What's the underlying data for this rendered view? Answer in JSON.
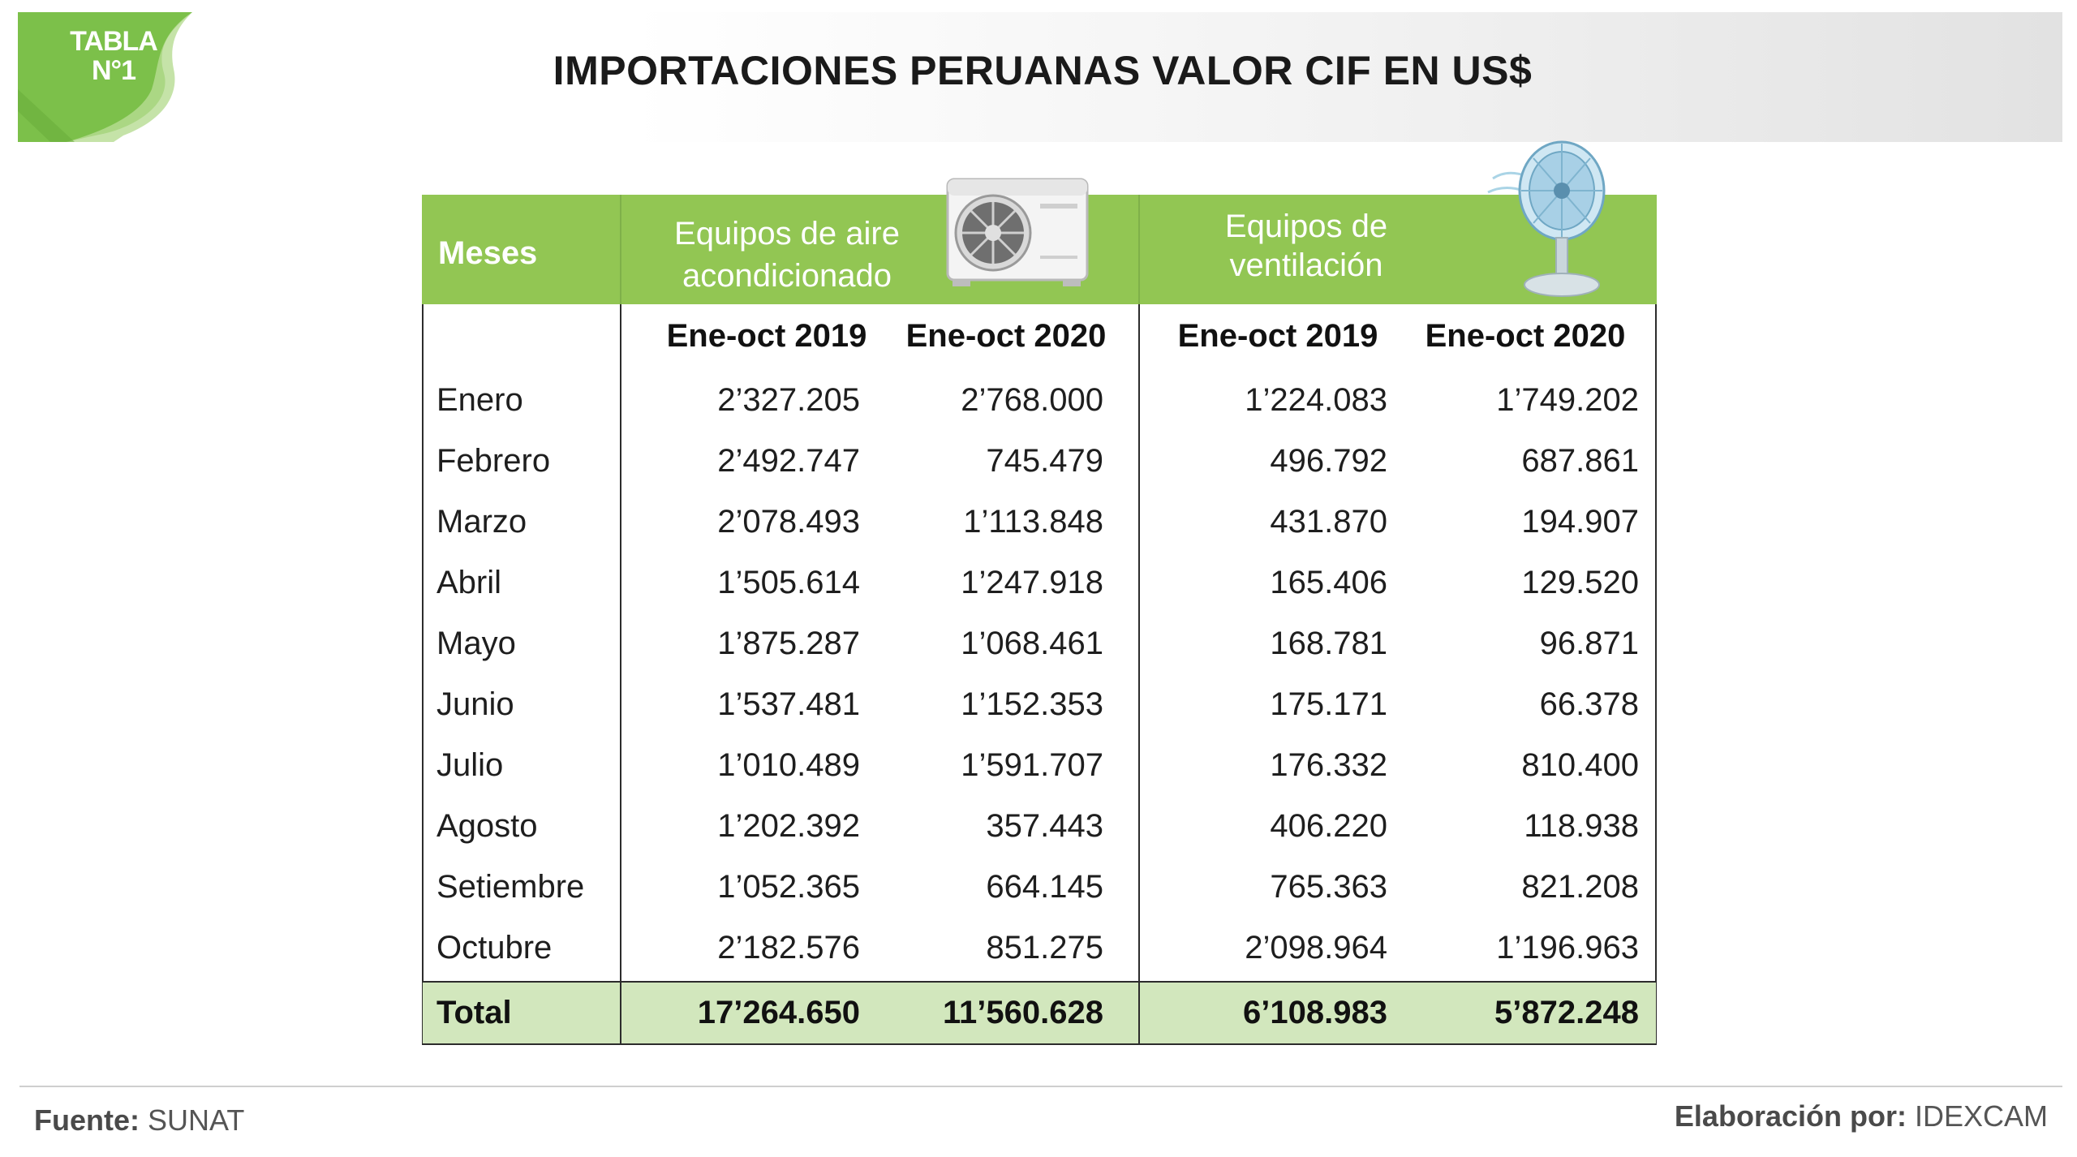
{
  "badge": {
    "line1": "TABLA",
    "line2": "N°1"
  },
  "title": "IMPORTACIONES PERUANAS VALOR CIF EN US$",
  "colors": {
    "header_green": "#92c653",
    "badge_green": "#7cc04a",
    "total_band": "#d2e7bd",
    "text_dark": "#1e1e1e"
  },
  "table": {
    "month_header": "Meses",
    "groups": [
      {
        "label_line1": "Equipos de aire",
        "label_line2": "acondicionado",
        "icon": "air-conditioner-icon"
      },
      {
        "label_line1": "Equipos de",
        "label_line2": "ventilación",
        "icon": "desk-fan-icon"
      }
    ],
    "sub_headers": [
      "Ene-oct 2019",
      "Ene-oct 2020",
      "Ene-oct 2019",
      "Ene-oct 2020"
    ],
    "rows": [
      {
        "month": "Enero",
        "v1": "2’327.205",
        "v2": "2’768.000",
        "v3": "1’224.083",
        "v4": "1’749.202"
      },
      {
        "month": "Febrero",
        "v1": "2’492.747",
        "v2": "745.479",
        "v3": "496.792",
        "v4": "687.861"
      },
      {
        "month": "Marzo",
        "v1": "2’078.493",
        "v2": "1’113.848",
        "v3": "431.870",
        "v4": "194.907"
      },
      {
        "month": "Abril",
        "v1": "1’505.614",
        "v2": "1’247.918",
        "v3": "165.406",
        "v4": "129.520"
      },
      {
        "month": "Mayo",
        "v1": "1’875.287",
        "v2": "1’068.461",
        "v3": "168.781",
        "v4": "96.871"
      },
      {
        "month": "Junio",
        "v1": "1’537.481",
        "v2": "1’152.353",
        "v3": "175.171",
        "v4": "66.378"
      },
      {
        "month": "Julio",
        "v1": "1’010.489",
        "v2": "1’591.707",
        "v3": "176.332",
        "v4": "810.400"
      },
      {
        "month": "Agosto",
        "v1": "1’202.392",
        "v2": "357.443",
        "v3": "406.220",
        "v4": "118.938"
      },
      {
        "month": "Setiembre",
        "v1": "1’052.365",
        "v2": "664.145",
        "v3": "765.363",
        "v4": "821.208"
      },
      {
        "month": "Octubre",
        "v1": "2’182.576",
        "v2": "851.275",
        "v3": "2’098.964",
        "v4": "1’196.963"
      }
    ],
    "total": {
      "month": "Total",
      "v1": "17’264.650",
      "v2": "11’560.628",
      "v3": "6’108.983",
      "v4": "5’872.248"
    }
  },
  "footer": {
    "source_label": "Fuente:",
    "source_value": "SUNAT",
    "made_by_label": "Elaboración por:",
    "made_by_value": "IDEXCAM"
  }
}
